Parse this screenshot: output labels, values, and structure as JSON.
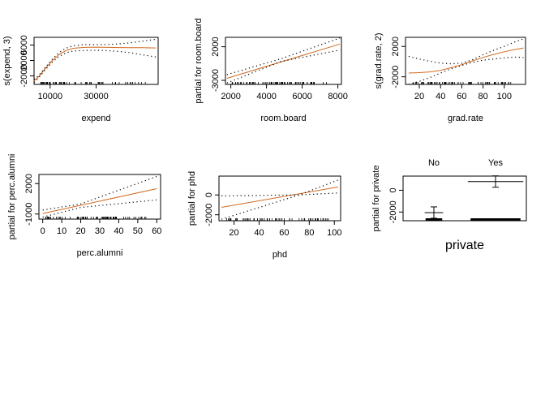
{
  "chart_data": [
    {
      "type": "line",
      "xlabel": "expend",
      "ylabel": "s(expend, 3)",
      "xlim": [
        3000,
        57000
      ],
      "ylim": [
        -4200,
        8000
      ],
      "xticks": [
        10000,
        30000
      ],
      "xtick_labels": [
        "10000",
        "30000"
      ],
      "yticks": [
        -2000,
        2000,
        6000
      ],
      "ytick_labels": [
        "-2000",
        "2000",
        "6000"
      ],
      "series": [
        {
          "role": "fit",
          "color": "#d2691e",
          "style": "solid",
          "x": [
            3000,
            5000,
            8000,
            11000,
            14000,
            17000,
            20000,
            25000,
            30000,
            35000,
            40000,
            45000,
            50000,
            56000
          ],
          "y": [
            -3300,
            -2200,
            0,
            2000,
            3600,
            4600,
            5150,
            5400,
            5450,
            5400,
            5350,
            5300,
            5300,
            5250
          ]
        },
        {
          "role": "upper-band",
          "color": "#000000",
          "style": "dotted",
          "x": [
            3000,
            5000,
            8000,
            11000,
            14000,
            17000,
            20000,
            25000,
            30000,
            35000,
            40000,
            45000,
            50000,
            56000
          ],
          "y": [
            -2900,
            -1900,
            300,
            2400,
            4100,
            5200,
            5800,
            6100,
            6100,
            6150,
            6300,
            6600,
            7000,
            7500
          ]
        },
        {
          "role": "lower-band",
          "color": "#000000",
          "style": "dotted",
          "x": [
            3000,
            5000,
            8000,
            11000,
            14000,
            17000,
            20000,
            25000,
            30000,
            35000,
            40000,
            45000,
            50000,
            56000
          ],
          "y": [
            -3700,
            -2500,
            -300,
            1600,
            3100,
            4000,
            4450,
            4600,
            4650,
            4550,
            4350,
            4000,
            3500,
            2900
          ]
        }
      ],
      "rug": true
    },
    {
      "type": "line",
      "xlabel": "room.board",
      "ylabel": "partial for room.board",
      "xlim": [
        1700,
        8200
      ],
      "ylim": [
        -3600,
        3400
      ],
      "xticks": [
        2000,
        4000,
        6000,
        8000
      ],
      "xtick_labels": [
        "2000",
        "4000",
        "6000",
        "8000"
      ],
      "yticks": [
        -3000,
        2000
      ],
      "ytick_labels": [
        "-3000",
        "2000"
      ],
      "series": [
        {
          "role": "fit",
          "color": "#d2691e",
          "style": "solid",
          "x": [
            1780,
            8120
          ],
          "y": [
            -2700,
            2400
          ]
        },
        {
          "role": "upper-band",
          "color": "#000000",
          "style": "dotted",
          "x": [
            1780,
            4800,
            8120
          ],
          "y": [
            -2150,
            200,
            3300
          ]
        },
        {
          "role": "lower-band",
          "color": "#000000",
          "style": "dotted",
          "x": [
            1780,
            4800,
            8120
          ],
          "y": [
            -3400,
            -200,
            1500
          ]
        }
      ],
      "rug": true
    },
    {
      "type": "line",
      "xlabel": "grad.rate",
      "ylabel": "s(grad.rate, 2)",
      "xlim": [
        7,
        120
      ],
      "ylim": [
        -3000,
        3200
      ],
      "xticks": [
        20,
        40,
        60,
        80,
        100
      ],
      "xtick_labels": [
        "20",
        "40",
        "60",
        "80",
        "100"
      ],
      "yticks": [
        -2000,
        2000
      ],
      "ytick_labels": [
        "-2000",
        "2000"
      ],
      "series": [
        {
          "role": "fit",
          "color": "#d2691e",
          "style": "solid",
          "x": [
            10,
            20,
            30,
            40,
            50,
            60,
            70,
            80,
            90,
            100,
            110,
            118
          ],
          "y": [
            -1500,
            -1450,
            -1350,
            -1150,
            -800,
            -400,
            100,
            550,
            950,
            1300,
            1600,
            1800
          ]
        },
        {
          "role": "upper-band",
          "color": "#000000",
          "style": "dotted",
          "x": [
            10,
            20,
            30,
            40,
            50,
            60,
            70,
            80,
            90,
            100,
            110,
            118
          ],
          "y": [
            700,
            350,
            50,
            -200,
            -300,
            -200,
            250,
            900,
            1500,
            2000,
            2600,
            3000
          ]
        },
        {
          "role": "lower-band",
          "color": "#000000",
          "style": "dotted",
          "x": [
            10,
            20,
            30,
            40,
            50,
            60,
            70,
            80,
            90,
            100,
            110,
            118
          ],
          "y": [
            -3000,
            -2600,
            -2100,
            -1500,
            -950,
            -500,
            -100,
            200,
            350,
            500,
            600,
            550
          ]
        }
      ],
      "rug": true
    },
    {
      "type": "line",
      "xlabel": "perc.alumni",
      "ylabel": "partial for perc.alumni",
      "xlim": [
        -2,
        62
      ],
      "ylim": [
        -1500,
        2900
      ],
      "xticks": [
        0,
        10,
        20,
        30,
        40,
        50,
        60
      ],
      "xtick_labels": [
        "0",
        "10",
        "20",
        "30",
        "40",
        "50",
        "60"
      ],
      "yticks": [
        -1000,
        2000
      ],
      "ytick_labels": [
        "-1000",
        "2000"
      ],
      "series": [
        {
          "role": "fit",
          "color": "#d2691e",
          "style": "solid",
          "x": [
            0,
            60
          ],
          "y": [
            -950,
            1500
          ]
        },
        {
          "role": "upper-band",
          "color": "#000000",
          "style": "dotted",
          "x": [
            0,
            20,
            60
          ],
          "y": [
            -600,
            0,
            2700
          ]
        },
        {
          "role": "lower-band",
          "color": "#000000",
          "style": "dotted",
          "x": [
            0,
            20,
            60
          ],
          "y": [
            -1300,
            -350,
            400
          ]
        }
      ],
      "rug": true
    },
    {
      "type": "line",
      "xlabel": "phd",
      "ylabel": "partial for phd",
      "xlim": [
        8,
        105
      ],
      "ylim": [
        -2600,
        1900
      ],
      "xticks": [
        20,
        40,
        60,
        80,
        100
      ],
      "xtick_labels": [
        "20",
        "40",
        "60",
        "80",
        "100"
      ],
      "yticks": [
        -2000,
        0
      ],
      "ytick_labels": [
        "-2000",
        "0"
      ],
      "series": [
        {
          "role": "fit",
          "color": "#d2691e",
          "style": "solid",
          "x": [
            10,
            103
          ],
          "y": [
            -1250,
            800
          ]
        },
        {
          "role": "upper-band",
          "color": "#000000",
          "style": "dotted",
          "x": [
            10,
            72,
            103
          ],
          "y": [
            -100,
            0,
            1500
          ]
        },
        {
          "role": "lower-band",
          "color": "#000000",
          "style": "dotted",
          "x": [
            10,
            72,
            103
          ],
          "y": [
            -2450,
            0,
            200
          ]
        }
      ],
      "rug": true
    },
    {
      "type": "bar",
      "xlabel": "private",
      "ylabel": "partial for private",
      "categories": [
        "No",
        "Yes"
      ],
      "values": [
        -2050,
        800
      ],
      "ylim": [
        -2800,
        1300
      ],
      "yticks": [
        -2000,
        0
      ],
      "ytick_labels": [
        "-2000",
        "0"
      ]
    }
  ]
}
